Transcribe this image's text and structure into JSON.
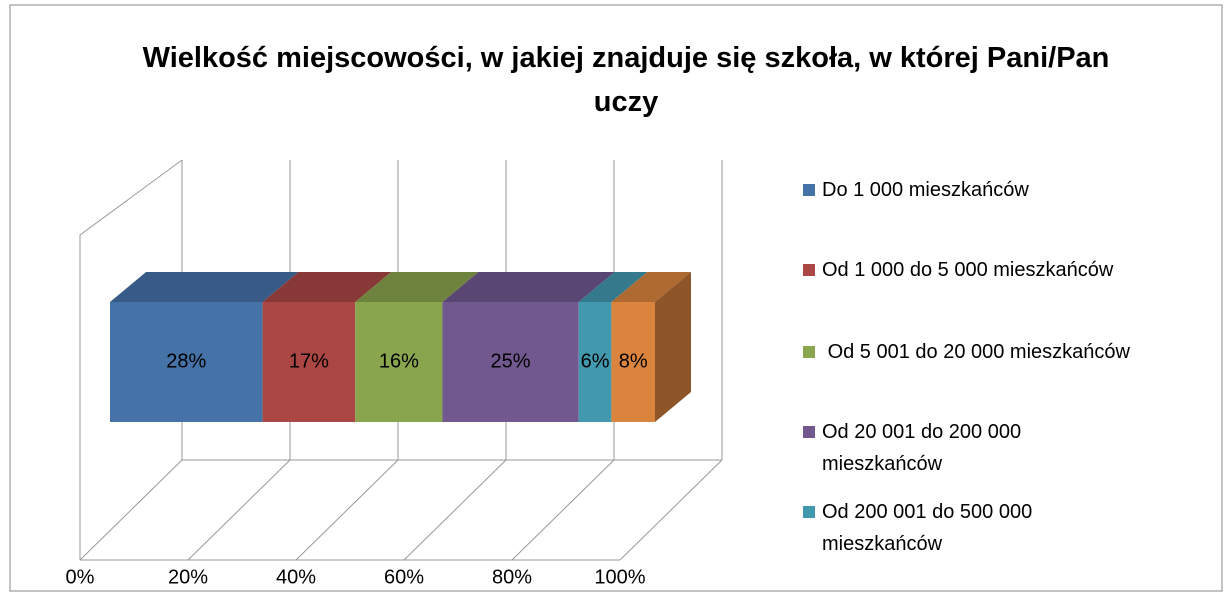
{
  "chart_data": {
    "type": "bar",
    "orientation": "horizontal",
    "stacked": true,
    "title": "Wielkość miejscowości, w jakiej znajduje się szkoła, w której Pani/Pan uczy",
    "categories": [
      null
    ],
    "series": [
      {
        "name": "Do 1 000 mieszkańców",
        "color": "#4572a7",
        "values": [
          28
        ],
        "value_labels": [
          "28%"
        ]
      },
      {
        "name": "Od 1 000 do 5 000 mieszkańców",
        "color": "#aa4643",
        "values": [
          17
        ],
        "value_labels": [
          "17%"
        ]
      },
      {
        "name": " Od 5 001 do 20 000 mieszkańców",
        "color": "#89a54e",
        "values": [
          16
        ],
        "value_labels": [
          "16%"
        ]
      },
      {
        "name": "Od 20 001 do 200 000 mieszkańców",
        "color": "#71588f",
        "values": [
          25
        ],
        "value_labels": [
          "25%"
        ]
      },
      {
        "name": "Od 200 001 do 500 000 mieszkańców",
        "color": "#4198af",
        "values": [
          6
        ],
        "value_labels": [
          "6%"
        ]
      },
      {
        "name": null,
        "color": "#db843d",
        "values": [
          8
        ],
        "value_labels": [
          "8%"
        ]
      }
    ],
    "xlim": [
      0,
      100
    ],
    "xticks": [
      {
        "value": 0,
        "label": "0%"
      },
      {
        "value": 20,
        "label": "20%"
      },
      {
        "value": 40,
        "label": "40%"
      },
      {
        "value": 60,
        "label": "60%"
      },
      {
        "value": 80,
        "label": "80%"
      },
      {
        "value": 100,
        "label": "100%"
      }
    ],
    "grid": true,
    "legend": "right"
  }
}
